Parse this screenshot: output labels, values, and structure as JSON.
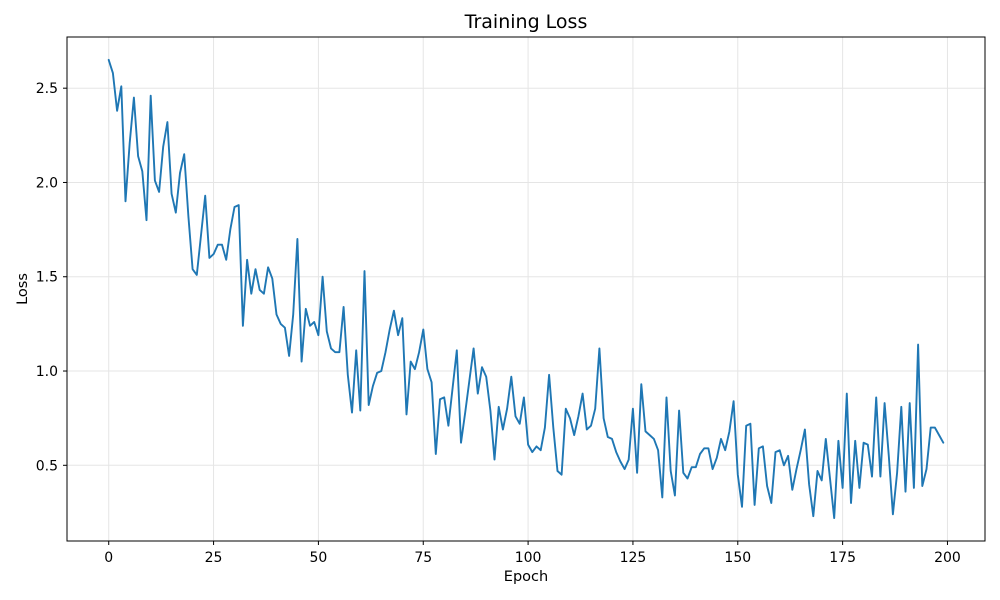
{
  "figure": {
    "title": "Training Loss"
  },
  "chart_data": {
    "type": "line",
    "title": "Training Loss",
    "xlabel": "Epoch",
    "ylabel": "Loss",
    "legend": "none",
    "grid": true,
    "line_color": "#1f77b4",
    "grid_color": "#e5e5e5",
    "spine_color": "#000000",
    "xlim": [
      -9.95,
      208.95
    ],
    "ylim": [
      0.0985,
      2.7715
    ],
    "xticks": [
      0,
      25,
      50,
      75,
      100,
      125,
      150,
      175,
      200
    ],
    "yticks": [
      0.5,
      1.0,
      1.5,
      2.0,
      2.5
    ],
    "series_name": "training-loss",
    "x": [
      0,
      1,
      2,
      3,
      4,
      5,
      6,
      7,
      8,
      9,
      10,
      11,
      12,
      13,
      14,
      15,
      16,
      17,
      18,
      19,
      20,
      21,
      22,
      23,
      24,
      25,
      26,
      27,
      28,
      29,
      30,
      31,
      32,
      33,
      34,
      35,
      36,
      37,
      38,
      39,
      40,
      41,
      42,
      43,
      44,
      45,
      46,
      47,
      48,
      49,
      50,
      51,
      52,
      53,
      54,
      55,
      56,
      57,
      58,
      59,
      60,
      61,
      62,
      63,
      64,
      65,
      66,
      67,
      68,
      69,
      70,
      71,
      72,
      73,
      74,
      75,
      76,
      77,
      78,
      79,
      80,
      81,
      82,
      83,
      84,
      85,
      86,
      87,
      88,
      89,
      90,
      91,
      92,
      93,
      94,
      95,
      96,
      97,
      98,
      99,
      100,
      101,
      102,
      103,
      104,
      105,
      106,
      107,
      108,
      109,
      110,
      111,
      112,
      113,
      114,
      115,
      116,
      117,
      118,
      119,
      120,
      121,
      122,
      123,
      124,
      125,
      126,
      127,
      128,
      129,
      130,
      131,
      132,
      133,
      134,
      135,
      136,
      137,
      138,
      139,
      140,
      141,
      142,
      143,
      144,
      145,
      146,
      147,
      148,
      149,
      150,
      151,
      152,
      153,
      154,
      155,
      156,
      157,
      158,
      159,
      160,
      161,
      162,
      163,
      164,
      165,
      166,
      167,
      168,
      169,
      170,
      171,
      172,
      173,
      174,
      175,
      176,
      177,
      178,
      179,
      180,
      181,
      182,
      183,
      184,
      185,
      186,
      187,
      188,
      189,
      190,
      191,
      192,
      193,
      194,
      195,
      196,
      197,
      198,
      199
    ],
    "values": [
      2.65,
      2.58,
      2.38,
      2.51,
      1.9,
      2.21,
      2.45,
      2.14,
      2.06,
      1.8,
      2.46,
      2.01,
      1.95,
      2.19,
      2.32,
      1.94,
      1.84,
      2.05,
      2.15,
      1.82,
      1.54,
      1.51,
      1.72,
      1.93,
      1.6,
      1.62,
      1.67,
      1.67,
      1.59,
      1.75,
      1.87,
      1.88,
      1.24,
      1.59,
      1.41,
      1.54,
      1.43,
      1.41,
      1.55,
      1.49,
      1.3,
      1.25,
      1.23,
      1.08,
      1.3,
      1.7,
      1.05,
      1.33,
      1.24,
      1.26,
      1.19,
      1.5,
      1.21,
      1.12,
      1.1,
      1.1,
      1.34,
      0.98,
      0.78,
      1.11,
      0.79,
      1.53,
      0.82,
      0.92,
      0.99,
      1.0,
      1.1,
      1.22,
      1.32,
      1.19,
      1.28,
      0.77,
      1.05,
      1.01,
      1.1,
      1.22,
      1.01,
      0.94,
      0.56,
      0.85,
      0.86,
      0.71,
      0.91,
      1.11,
      0.62,
      0.78,
      0.95,
      1.12,
      0.88,
      1.02,
      0.97,
      0.79,
      0.53,
      0.81,
      0.69,
      0.8,
      0.97,
      0.76,
      0.72,
      0.86,
      0.61,
      0.57,
      0.6,
      0.58,
      0.7,
      0.98,
      0.7,
      0.47,
      0.45,
      0.8,
      0.75,
      0.66,
      0.76,
      0.88,
      0.69,
      0.71,
      0.8,
      1.12,
      0.75,
      0.65,
      0.64,
      0.57,
      0.52,
      0.48,
      0.53,
      0.8,
      0.46,
      0.93,
      0.68,
      0.66,
      0.64,
      0.58,
      0.33,
      0.86,
      0.47,
      0.34,
      0.79,
      0.46,
      0.43,
      0.49,
      0.49,
      0.56,
      0.59,
      0.59,
      0.48,
      0.54,
      0.64,
      0.58,
      0.68,
      0.84,
      0.45,
      0.28,
      0.71,
      0.72,
      0.29,
      0.59,
      0.6,
      0.39,
      0.3,
      0.57,
      0.58,
      0.5,
      0.55,
      0.37,
      0.48,
      0.58,
      0.69,
      0.4,
      0.23,
      0.47,
      0.42,
      0.64,
      0.43,
      0.22,
      0.63,
      0.38,
      0.88,
      0.3,
      0.63,
      0.38,
      0.62,
      0.61,
      0.44,
      0.86,
      0.44,
      0.83,
      0.55,
      0.24,
      0.46,
      0.81,
      0.36,
      0.83,
      0.38,
      1.14,
      0.39,
      0.48,
      0.7,
      0.7,
      0.66,
      0.62
    ]
  }
}
